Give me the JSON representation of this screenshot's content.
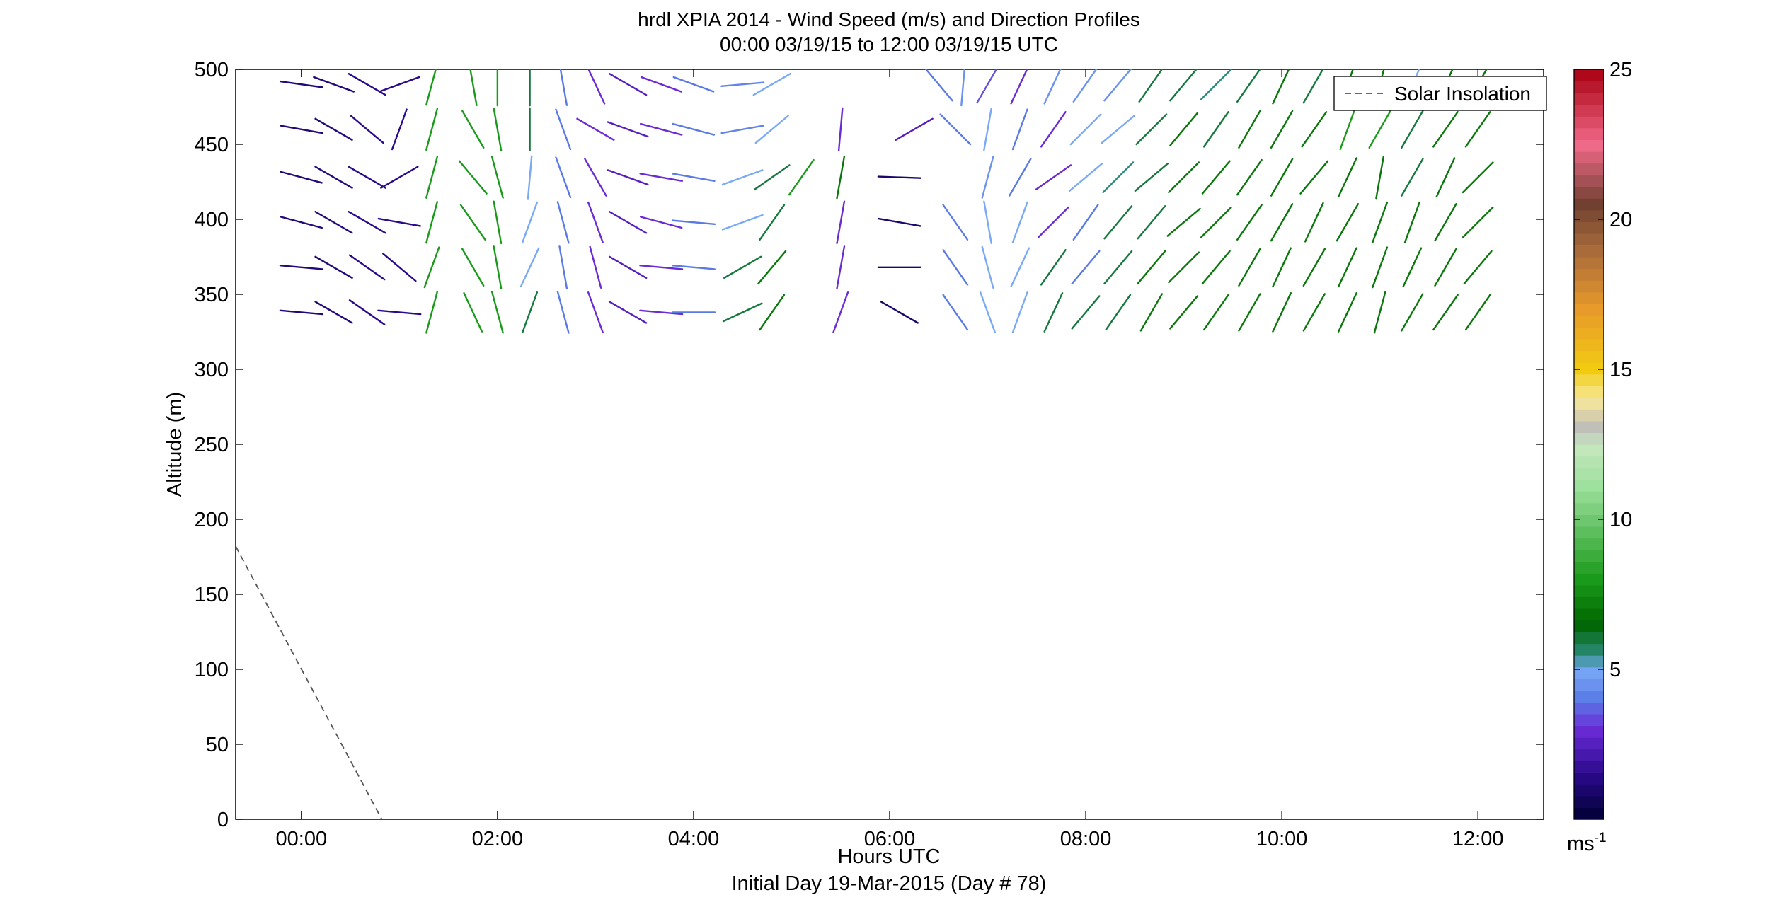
{
  "chart_data": {
    "type": "scatter",
    "title": "hrdl XPIA 2014 - Wind Speed (m/s) and Direction Profiles",
    "subtitle": "00:00 03/19/15 to 12:00 03/19/15  UTC",
    "xlabel": "Hours UTC",
    "xlabel2": "Initial Day 19-Mar-2015 (Day # 78)",
    "ylabel": "Altitude (m)",
    "xlim_hours": [
      -0.67,
      12.67
    ],
    "ylim": [
      0,
      500
    ],
    "x_ticks": [
      {
        "value": 0,
        "label": "00:00"
      },
      {
        "value": 2,
        "label": "02:00"
      },
      {
        "value": 4,
        "label": "04:00"
      },
      {
        "value": 6,
        "label": "06:00"
      },
      {
        "value": 8,
        "label": "08:00"
      },
      {
        "value": 10,
        "label": "10:00"
      },
      {
        "value": 12,
        "label": "12:00"
      }
    ],
    "y_ticks": [
      {
        "value": 0,
        "label": "0"
      },
      {
        "value": 50,
        "label": "50"
      },
      {
        "value": 100,
        "label": "100"
      },
      {
        "value": 150,
        "label": "150"
      },
      {
        "value": 200,
        "label": "200"
      },
      {
        "value": 250,
        "label": "250"
      },
      {
        "value": 300,
        "label": "300"
      },
      {
        "value": 350,
        "label": "350"
      },
      {
        "value": 400,
        "label": "400"
      },
      {
        "value": 450,
        "label": "450"
      },
      {
        "value": 500,
        "label": "500"
      }
    ],
    "legend": {
      "label": "Solar Insolation",
      "placement": "top-right",
      "style": "dashed",
      "color": "#555555"
    },
    "solar_insolation": [
      [
        -0.67,
        182
      ],
      [
        0.82,
        0
      ]
    ],
    "colorbar": {
      "range": [
        0,
        25
      ],
      "ticks": [
        {
          "value": 5,
          "label": "5"
        },
        {
          "value": 10,
          "label": "10"
        },
        {
          "value": 15,
          "label": "15"
        },
        {
          "value": 20,
          "label": "20"
        },
        {
          "value": 25,
          "label": "25"
        }
      ],
      "unit_label": "ms",
      "unit_exponent": "-1",
      "stops": [
        [
          0,
          "#000033"
        ],
        [
          1.5,
          "#2a0a8a"
        ],
        [
          3,
          "#6a2ad6"
        ],
        [
          4,
          "#5a7ae6"
        ],
        [
          5,
          "#7aaaf6"
        ],
        [
          5.5,
          "#2a8a7a"
        ],
        [
          6.5,
          "#006600"
        ],
        [
          8,
          "#1a9a1a"
        ],
        [
          11,
          "#9adf9a"
        ],
        [
          12.5,
          "#c8e8c0"
        ],
        [
          13,
          "#bbbbbb"
        ],
        [
          14,
          "#f6e89a"
        ],
        [
          15,
          "#f2cc10"
        ],
        [
          17,
          "#e89a2a"
        ],
        [
          19,
          "#a86a3a"
        ],
        [
          20.5,
          "#704030"
        ],
        [
          22.5,
          "#f26a8a"
        ],
        [
          25,
          "#a80010"
        ]
      ]
    },
    "wind_profiles": {
      "note": "each entry: [time_hours, altitude_m, wind_speed_m_s, direction_deg_from]",
      "vectors": [
        [
          0.0,
          490,
          1.2,
          278
        ],
        [
          0.33,
          490,
          1.2,
          290
        ],
        [
          0.67,
          490,
          1.5,
          300
        ],
        [
          1.0,
          490,
          1.5,
          250
        ],
        [
          1.33,
          490,
          8,
          195
        ],
        [
          1.75,
          490,
          8,
          170
        ],
        [
          2.0,
          490,
          8,
          180
        ],
        [
          2.33,
          490,
          6,
          180
        ],
        [
          2.67,
          490,
          4,
          170
        ],
        [
          3.0,
          490,
          3,
          155
        ],
        [
          3.33,
          490,
          2.5,
          300
        ],
        [
          3.67,
          490,
          3,
          290
        ],
        [
          4.0,
          490,
          4,
          290
        ],
        [
          4.5,
          490,
          4.2,
          265
        ],
        [
          4.8,
          490,
          5,
          240
        ],
        [
          6.5,
          490,
          4,
          140
        ],
        [
          6.75,
          490,
          4.5,
          185
        ],
        [
          7.0,
          490,
          3.5,
          210
        ],
        [
          7.33,
          490,
          3,
          205
        ],
        [
          7.67,
          490,
          4.5,
          205
        ],
        [
          8.0,
          490,
          4.5,
          215
        ],
        [
          8.33,
          490,
          4.5,
          220
        ],
        [
          8.67,
          490,
          6,
          215
        ],
        [
          9.0,
          490,
          6,
          220
        ],
        [
          9.33,
          490,
          5.5,
          225
        ],
        [
          9.67,
          490,
          6,
          215
        ],
        [
          10.0,
          490,
          7,
          205
        ],
        [
          10.33,
          490,
          6,
          210
        ],
        [
          10.67,
          490,
          7,
          200
        ],
        [
          11.0,
          490,
          7,
          195
        ],
        [
          11.33,
          490,
          5,
          205
        ],
        [
          11.67,
          490,
          7,
          205
        ],
        [
          12.0,
          490,
          7,
          210
        ],
        [
          0.0,
          460,
          1.2,
          280
        ],
        [
          0.33,
          460,
          1.2,
          300
        ],
        [
          0.67,
          460,
          1.5,
          310
        ],
        [
          1.0,
          460,
          1.5,
          200
        ],
        [
          1.33,
          460,
          8,
          195
        ],
        [
          1.75,
          460,
          8,
          150
        ],
        [
          2.0,
          460,
          8,
          170
        ],
        [
          2.33,
          460,
          6,
          180
        ],
        [
          2.67,
          460,
          4,
          160
        ],
        [
          3.0,
          460,
          3,
          300
        ],
        [
          3.33,
          460,
          2.5,
          290
        ],
        [
          3.67,
          460,
          3,
          285
        ],
        [
          4.0,
          460,
          4,
          285
        ],
        [
          4.5,
          460,
          4.2,
          260
        ],
        [
          4.8,
          460,
          5,
          230
        ],
        [
          5.5,
          460,
          3,
          185
        ],
        [
          6.25,
          460,
          2.5,
          240
        ],
        [
          6.67,
          460,
          4,
          135
        ],
        [
          7.0,
          460,
          5,
          190
        ],
        [
          7.33,
          460,
          4,
          200
        ],
        [
          7.67,
          460,
          3,
          215
        ],
        [
          8.0,
          460,
          5,
          225
        ],
        [
          8.33,
          460,
          5,
          230
        ],
        [
          8.67,
          460,
          6,
          225
        ],
        [
          9.0,
          460,
          7,
          220
        ],
        [
          9.33,
          460,
          6,
          215
        ],
        [
          9.67,
          460,
          7,
          210
        ],
        [
          10.0,
          460,
          7,
          210
        ],
        [
          10.33,
          460,
          7,
          215
        ],
        [
          10.67,
          460,
          8,
          200
        ],
        [
          11.0,
          460,
          8,
          210
        ],
        [
          11.33,
          460,
          6,
          210
        ],
        [
          11.67,
          460,
          7,
          215
        ],
        [
          12.0,
          460,
          7,
          215
        ],
        [
          0.0,
          428,
          1.2,
          285
        ],
        [
          0.33,
          428,
          1.2,
          300
        ],
        [
          0.67,
          428,
          1.5,
          300
        ],
        [
          1.0,
          428,
          1.5,
          240
        ],
        [
          1.33,
          428,
          8,
          195
        ],
        [
          1.75,
          428,
          8,
          140
        ],
        [
          2.0,
          428,
          8,
          165
        ],
        [
          2.33,
          428,
          5,
          185
        ],
        [
          2.67,
          428,
          4,
          160
        ],
        [
          3.0,
          428,
          3,
          150
        ],
        [
          3.33,
          428,
          2.5,
          290
        ],
        [
          3.67,
          428,
          3,
          280
        ],
        [
          4.0,
          428,
          4,
          280
        ],
        [
          4.5,
          428,
          5,
          250
        ],
        [
          4.8,
          428,
          6,
          235
        ],
        [
          5.1,
          428,
          8,
          215
        ],
        [
          5.5,
          428,
          7,
          190
        ],
        [
          6.1,
          428,
          1,
          272
        ],
        [
          7.0,
          428,
          4.5,
          195
        ],
        [
          7.33,
          428,
          4,
          210
        ],
        [
          7.67,
          428,
          3,
          235
        ],
        [
          8.0,
          428,
          5,
          230
        ],
        [
          8.33,
          428,
          5.5,
          225
        ],
        [
          8.67,
          428,
          6,
          230
        ],
        [
          9.0,
          428,
          7,
          225
        ],
        [
          9.33,
          428,
          7,
          220
        ],
        [
          9.67,
          428,
          7,
          215
        ],
        [
          10.0,
          428,
          7,
          210
        ],
        [
          10.33,
          428,
          7,
          220
        ],
        [
          10.67,
          428,
          7,
          205
        ],
        [
          11.0,
          428,
          7,
          190
        ],
        [
          11.33,
          428,
          6,
          210
        ],
        [
          11.67,
          428,
          7,
          205
        ],
        [
          12.0,
          428,
          7,
          225
        ],
        [
          0.0,
          398,
          1.2,
          285
        ],
        [
          0.33,
          398,
          1.2,
          300
        ],
        [
          0.67,
          398,
          1.5,
          300
        ],
        [
          1.0,
          398,
          1.5,
          280
        ],
        [
          1.33,
          398,
          8,
          195
        ],
        [
          1.75,
          398,
          8,
          145
        ],
        [
          2.0,
          398,
          8,
          170
        ],
        [
          2.33,
          398,
          5,
          200
        ],
        [
          2.67,
          398,
          4,
          165
        ],
        [
          3.0,
          398,
          3,
          160
        ],
        [
          3.33,
          398,
          2.5,
          300
        ],
        [
          3.67,
          398,
          3,
          285
        ],
        [
          4.0,
          398,
          4,
          275
        ],
        [
          4.5,
          398,
          5,
          250
        ],
        [
          4.8,
          398,
          6,
          215
        ],
        [
          5.5,
          398,
          3,
          190
        ],
        [
          6.1,
          398,
          1,
          280
        ],
        [
          6.67,
          398,
          4,
          145
        ],
        [
          7.0,
          398,
          5,
          170
        ],
        [
          7.33,
          398,
          5,
          200
        ],
        [
          7.67,
          398,
          3,
          225
        ],
        [
          8.0,
          398,
          4,
          215
        ],
        [
          8.33,
          398,
          6,
          220
        ],
        [
          8.67,
          398,
          6,
          220
        ],
        [
          9.0,
          398,
          7,
          230
        ],
        [
          9.33,
          398,
          7,
          225
        ],
        [
          9.67,
          398,
          7,
          215
        ],
        [
          10.0,
          398,
          7,
          210
        ],
        [
          10.33,
          398,
          7,
          205
        ],
        [
          10.67,
          398,
          7,
          210
        ],
        [
          11.0,
          398,
          7,
          200
        ],
        [
          11.33,
          398,
          7,
          200
        ],
        [
          11.67,
          398,
          7,
          210
        ],
        [
          12.0,
          398,
          7,
          225
        ],
        [
          0.0,
          368,
          1.2,
          275
        ],
        [
          0.33,
          368,
          1.2,
          300
        ],
        [
          0.67,
          368,
          1.5,
          305
        ],
        [
          1.0,
          368,
          1.5,
          310
        ],
        [
          1.33,
          368,
          8,
          200
        ],
        [
          1.75,
          368,
          8,
          150
        ],
        [
          2.0,
          368,
          8,
          170
        ],
        [
          2.33,
          368,
          5,
          205
        ],
        [
          2.67,
          368,
          4,
          170
        ],
        [
          3.0,
          368,
          3,
          165
        ],
        [
          3.33,
          368,
          2.5,
          300
        ],
        [
          3.67,
          368,
          3,
          275
        ],
        [
          4.0,
          368,
          4,
          275
        ],
        [
          4.5,
          368,
          6,
          240
        ],
        [
          4.8,
          368,
          7,
          220
        ],
        [
          5.5,
          368,
          3,
          190
        ],
        [
          6.1,
          368,
          1,
          270
        ],
        [
          6.67,
          368,
          4,
          145
        ],
        [
          7.0,
          368,
          5,
          165
        ],
        [
          7.33,
          368,
          5,
          205
        ],
        [
          7.67,
          368,
          6,
          215
        ],
        [
          8.0,
          368,
          4,
          220
        ],
        [
          8.33,
          368,
          6,
          220
        ],
        [
          8.67,
          368,
          7,
          220
        ],
        [
          9.0,
          368,
          7,
          225
        ],
        [
          9.33,
          368,
          7,
          220
        ],
        [
          9.67,
          368,
          7,
          210
        ],
        [
          10.0,
          368,
          7,
          205
        ],
        [
          10.33,
          368,
          7,
          210
        ],
        [
          10.67,
          368,
          7,
          205
        ],
        [
          11.0,
          368,
          7,
          200
        ],
        [
          11.33,
          368,
          7,
          205
        ],
        [
          11.67,
          368,
          7,
          210
        ],
        [
          12.0,
          368,
          7,
          220
        ],
        [
          0.0,
          338,
          1.2,
          275
        ],
        [
          0.33,
          338,
          1.2,
          300
        ],
        [
          0.67,
          338,
          1.5,
          305
        ],
        [
          1.0,
          338,
          1.5,
          275
        ],
        [
          1.33,
          338,
          8,
          195
        ],
        [
          1.75,
          338,
          8,
          155
        ],
        [
          2.0,
          338,
          8,
          165
        ],
        [
          2.33,
          338,
          6,
          200
        ],
        [
          2.67,
          338,
          4,
          165
        ],
        [
          3.0,
          338,
          3,
          160
        ],
        [
          3.33,
          338,
          2.5,
          300
        ],
        [
          3.67,
          338,
          3,
          275
        ],
        [
          4.0,
          338,
          4,
          270
        ],
        [
          4.5,
          338,
          6,
          245
        ],
        [
          4.8,
          338,
          7,
          215
        ],
        [
          5.5,
          338,
          3,
          200
        ],
        [
          6.1,
          338,
          1,
          300
        ],
        [
          6.67,
          338,
          4,
          145
        ],
        [
          7.0,
          338,
          5,
          160
        ],
        [
          7.33,
          338,
          5,
          200
        ],
        [
          7.67,
          338,
          6,
          205
        ],
        [
          8.0,
          338,
          6,
          220
        ],
        [
          8.33,
          338,
          6,
          215
        ],
        [
          8.67,
          338,
          7,
          210
        ],
        [
          9.0,
          338,
          7,
          220
        ],
        [
          9.33,
          338,
          7,
          215
        ],
        [
          9.67,
          338,
          7,
          210
        ],
        [
          10.0,
          338,
          7,
          205
        ],
        [
          10.33,
          338,
          7,
          210
        ],
        [
          10.67,
          338,
          7,
          205
        ],
        [
          11.0,
          338,
          7,
          195
        ],
        [
          11.33,
          338,
          7,
          210
        ],
        [
          11.67,
          338,
          7,
          215
        ],
        [
          12.0,
          338,
          7,
          215
        ]
      ]
    }
  }
}
